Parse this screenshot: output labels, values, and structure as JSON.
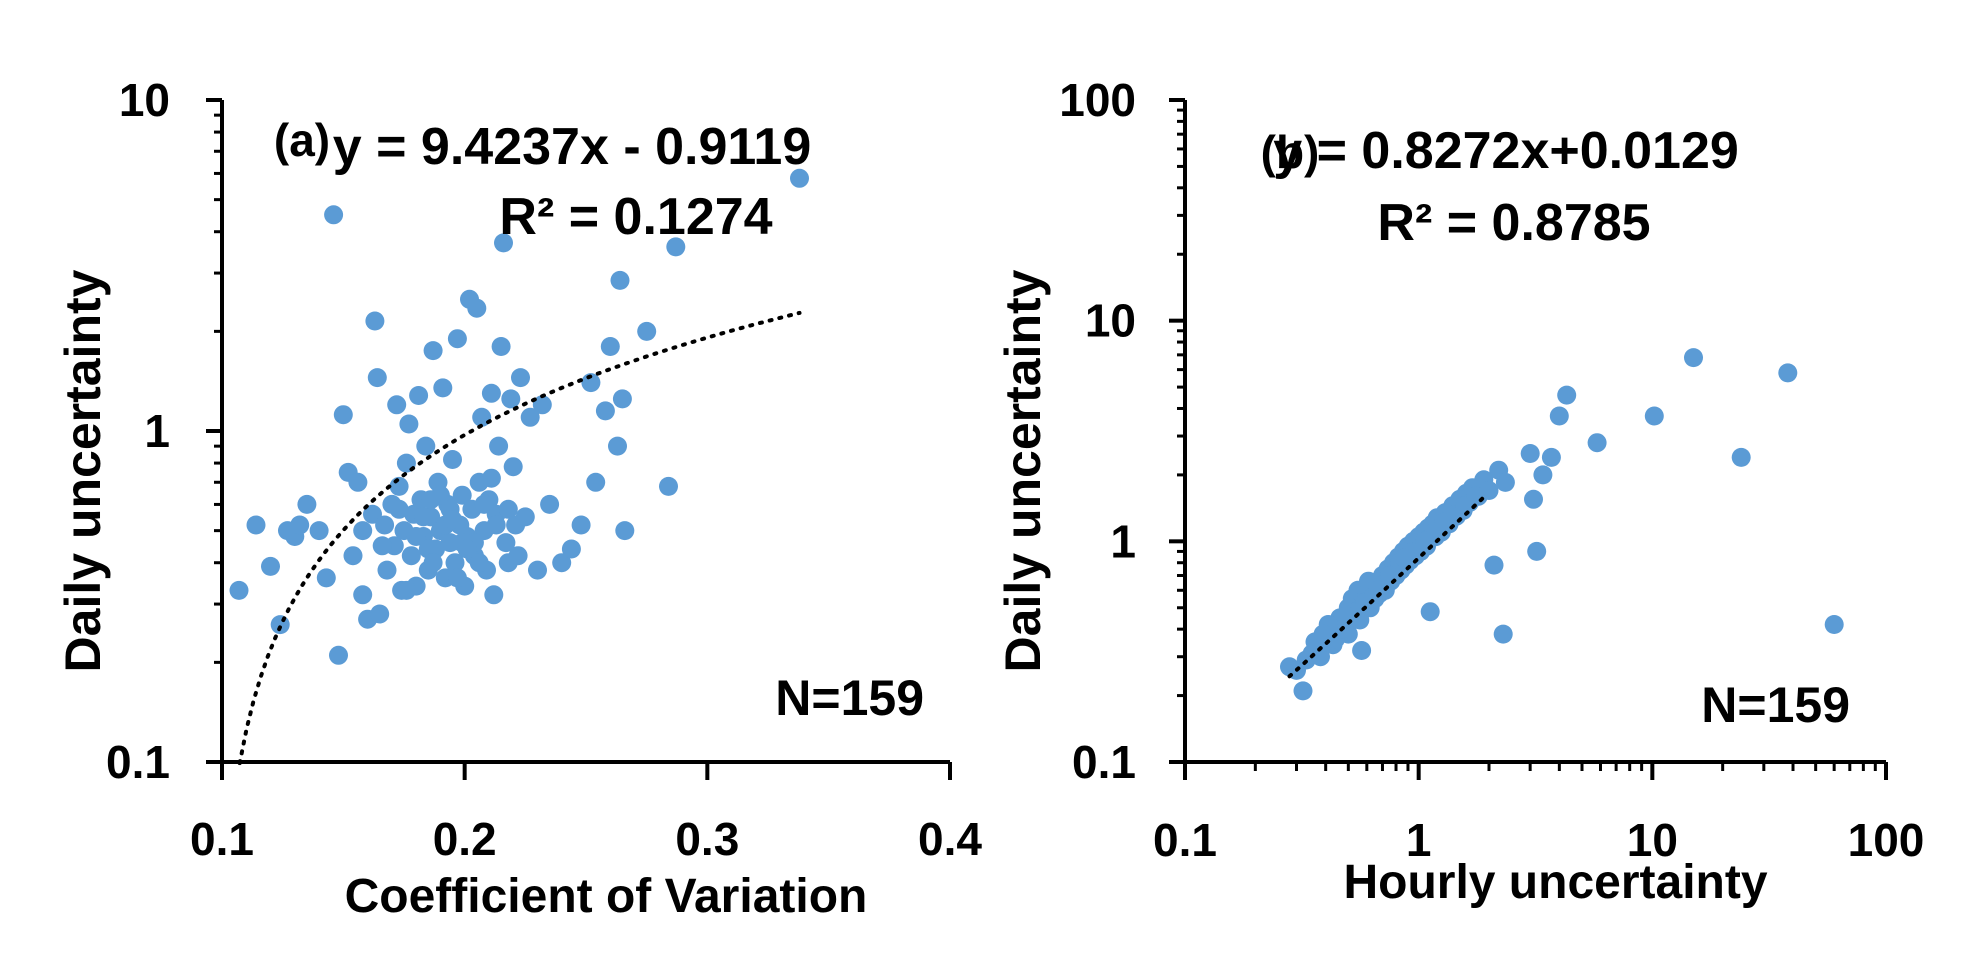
{
  "colors": {
    "point": "#5b9bd5",
    "axis": "#000000",
    "trend": "#000000"
  },
  "chart_data": [
    {
      "type": "scatter",
      "panel_label": "(a)",
      "equation": "y = 9.4237x - 0.9119",
      "r2": "R² = 0.1274",
      "n_label": "N=159",
      "xlabel": "Coefficient of Variation",
      "ylabel": "Daily uncertainty",
      "xscale": "linear",
      "yscale": "log",
      "xlim": [
        0.1,
        0.4
      ],
      "ylim": [
        0.1,
        10
      ],
      "xticks": [
        0.1,
        0.2,
        0.3,
        0.4
      ],
      "xtick_labels": [
        "0.1",
        "0.2",
        "0.3",
        "0.4"
      ],
      "yticks": [
        0.1,
        1,
        10
      ],
      "ytick_labels": [
        "0.1",
        "1",
        "10"
      ],
      "trendline": {
        "type": "linear",
        "slope": 9.4237,
        "intercept": -0.9119,
        "x_range": [
          0.1073,
          0.338
        ]
      },
      "points": [
        [
          0.107,
          0.33
        ],
        [
          0.114,
          0.52
        ],
        [
          0.12,
          0.39
        ],
        [
          0.124,
          0.26
        ],
        [
          0.127,
          0.5
        ],
        [
          0.13,
          0.48
        ],
        [
          0.132,
          0.52
        ],
        [
          0.135,
          0.6
        ],
        [
          0.14,
          0.5
        ],
        [
          0.143,
          0.36
        ],
        [
          0.146,
          4.5
        ],
        [
          0.148,
          0.21
        ],
        [
          0.15,
          1.12
        ],
        [
          0.152,
          0.75
        ],
        [
          0.154,
          0.42
        ],
        [
          0.156,
          0.7
        ],
        [
          0.158,
          0.32
        ],
        [
          0.16,
          0.27
        ],
        [
          0.162,
          0.56
        ],
        [
          0.163,
          2.15
        ],
        [
          0.164,
          1.45
        ],
        [
          0.165,
          0.28
        ],
        [
          0.167,
          0.52
        ],
        [
          0.168,
          0.38
        ],
        [
          0.17,
          0.6
        ],
        [
          0.171,
          0.45
        ],
        [
          0.172,
          1.2
        ],
        [
          0.173,
          0.68
        ],
        [
          0.174,
          0.33
        ],
        [
          0.175,
          0.5
        ],
        [
          0.176,
          0.8
        ],
        [
          0.177,
          1.05
        ],
        [
          0.178,
          0.42
        ],
        [
          0.179,
          0.56
        ],
        [
          0.18,
          0.34
        ],
        [
          0.181,
          1.28
        ],
        [
          0.182,
          0.62
        ],
        [
          0.183,
          0.48
        ],
        [
          0.184,
          0.9
        ],
        [
          0.185,
          0.38
        ],
        [
          0.186,
          0.55
        ],
        [
          0.187,
          1.75
        ],
        [
          0.188,
          0.44
        ],
        [
          0.189,
          0.7
        ],
        [
          0.19,
          0.5
        ],
        [
          0.191,
          1.35
        ],
        [
          0.192,
          0.36
        ],
        [
          0.193,
          0.6
        ],
        [
          0.194,
          0.46
        ],
        [
          0.195,
          0.82
        ],
        [
          0.196,
          0.4
        ],
        [
          0.197,
          1.9
        ],
        [
          0.198,
          0.52
        ],
        [
          0.199,
          0.64
        ],
        [
          0.2,
          0.34
        ],
        [
          0.201,
          0.48
        ],
        [
          0.202,
          2.5
        ],
        [
          0.203,
          0.58
        ],
        [
          0.204,
          0.42
        ],
        [
          0.205,
          2.35
        ],
        [
          0.206,
          0.7
        ],
        [
          0.207,
          1.1
        ],
        [
          0.208,
          0.5
        ],
        [
          0.209,
          0.38
        ],
        [
          0.21,
          0.62
        ],
        [
          0.211,
          1.3
        ],
        [
          0.212,
          0.32
        ],
        [
          0.213,
          0.56
        ],
        [
          0.214,
          0.9
        ],
        [
          0.215,
          1.8
        ],
        [
          0.216,
          3.7
        ],
        [
          0.217,
          0.46
        ],
        [
          0.218,
          0.4
        ],
        [
          0.219,
          1.25
        ],
        [
          0.22,
          0.78
        ],
        [
          0.221,
          0.52
        ],
        [
          0.222,
          0.42
        ],
        [
          0.223,
          1.45
        ],
        [
          0.225,
          0.55
        ],
        [
          0.227,
          1.1
        ],
        [
          0.23,
          0.38
        ],
        [
          0.232,
          1.2
        ],
        [
          0.235,
          0.6
        ],
        [
          0.24,
          0.4
        ],
        [
          0.244,
          0.44
        ],
        [
          0.248,
          0.52
        ],
        [
          0.252,
          1.4
        ],
        [
          0.254,
          0.7
        ],
        [
          0.258,
          1.15
        ],
        [
          0.26,
          1.8
        ],
        [
          0.263,
          0.9
        ],
        [
          0.264,
          2.85
        ],
        [
          0.265,
          1.25
        ],
        [
          0.266,
          0.5
        ],
        [
          0.275,
          2.0
        ],
        [
          0.284,
          0.68
        ],
        [
          0.287,
          3.6
        ],
        [
          0.338,
          5.8
        ],
        [
          0.176,
          0.33
        ],
        [
          0.183,
          0.55
        ],
        [
          0.19,
          0.64
        ],
        [
          0.197,
          0.36
        ],
        [
          0.204,
          0.46
        ],
        [
          0.211,
          0.72
        ],
        [
          0.218,
          0.58
        ],
        [
          0.185,
          0.44
        ],
        [
          0.192,
          0.52
        ],
        [
          0.199,
          0.46
        ],
        [
          0.206,
          0.4
        ],
        [
          0.213,
          0.52
        ],
        [
          0.18,
          0.48
        ],
        [
          0.187,
          0.4
        ],
        [
          0.194,
          0.58
        ],
        [
          0.201,
          0.44
        ],
        [
          0.208,
          0.6
        ],
        [
          0.173,
          0.58
        ],
        [
          0.158,
          0.5
        ],
        [
          0.166,
          0.45
        ],
        [
          0.195,
          0.54
        ],
        [
          0.186,
          0.62
        ]
      ]
    },
    {
      "type": "scatter",
      "panel_label": "(b)",
      "equation": "y = 0.8272x+0.0129",
      "r2": "R² = 0.8785",
      "n_label": "N=159",
      "xlabel": "Hourly uncertainty",
      "ylabel": "Daily uncertainty",
      "xscale": "log",
      "yscale": "log",
      "xlim": [
        0.1,
        100
      ],
      "ylim": [
        0.1,
        100
      ],
      "xticks": [
        0.1,
        1,
        10,
        100
      ],
      "xtick_labels": [
        "0.1",
        "1",
        "10",
        "100"
      ],
      "yticks": [
        0.1,
        1,
        10,
        100
      ],
      "ytick_labels": [
        "0.1",
        "1",
        "10",
        "100"
      ],
      "trendline": {
        "type": "linear",
        "slope": 0.8272,
        "intercept": 0.0129,
        "x_range": [
          0.28,
          1.95
        ]
      },
      "points": [
        [
          0.28,
          0.27
        ],
        [
          0.3,
          0.26
        ],
        [
          0.32,
          0.21
        ],
        [
          0.33,
          0.29
        ],
        [
          0.35,
          0.31
        ],
        [
          0.37,
          0.33
        ],
        [
          0.38,
          0.3
        ],
        [
          0.4,
          0.35
        ],
        [
          0.42,
          0.37
        ],
        [
          0.43,
          0.34
        ],
        [
          0.45,
          0.4
        ],
        [
          0.46,
          0.45
        ],
        [
          0.48,
          0.42
        ],
        [
          0.5,
          0.5
        ],
        [
          0.5,
          0.38
        ],
        [
          0.52,
          0.55
        ],
        [
          0.53,
          0.47
        ],
        [
          0.55,
          0.6
        ],
        [
          0.56,
          0.44
        ],
        [
          0.57,
          0.32
        ],
        [
          0.58,
          0.52
        ],
        [
          0.6,
          0.58
        ],
        [
          0.62,
          0.5
        ],
        [
          0.63,
          0.65
        ],
        [
          0.65,
          0.55
        ],
        [
          0.66,
          0.62
        ],
        [
          0.68,
          0.58
        ],
        [
          0.7,
          0.7
        ],
        [
          0.72,
          0.6
        ],
        [
          0.74,
          0.75
        ],
        [
          0.76,
          0.66
        ],
        [
          0.78,
          0.8
        ],
        [
          0.8,
          0.7
        ],
        [
          0.82,
          0.85
        ],
        [
          0.84,
          0.74
        ],
        [
          0.86,
          0.9
        ],
        [
          0.88,
          0.78
        ],
        [
          0.9,
          0.95
        ],
        [
          0.92,
          0.82
        ],
        [
          0.95,
          1.0
        ],
        [
          0.97,
          0.86
        ],
        [
          1.0,
          1.05
        ],
        [
          1.02,
          0.9
        ],
        [
          1.05,
          1.1
        ],
        [
          1.08,
          0.95
        ],
        [
          1.1,
          1.15
        ],
        [
          1.12,
          0.48
        ],
        [
          1.15,
          1.2
        ],
        [
          1.18,
          1.05
        ],
        [
          1.2,
          1.28
        ],
        [
          1.25,
          1.1
        ],
        [
          1.3,
          1.35
        ],
        [
          1.35,
          1.2
        ],
        [
          1.4,
          1.45
        ],
        [
          1.45,
          1.3
        ],
        [
          1.5,
          1.55
        ],
        [
          1.55,
          1.38
        ],
        [
          1.6,
          1.65
        ],
        [
          1.65,
          1.5
        ],
        [
          1.7,
          1.75
        ],
        [
          1.8,
          1.6
        ],
        [
          1.9,
          1.9
        ],
        [
          2.0,
          1.7
        ],
        [
          2.1,
          0.78
        ],
        [
          2.2,
          2.1
        ],
        [
          2.3,
          0.38
        ],
        [
          2.35,
          1.85
        ],
        [
          3.0,
          2.5
        ],
        [
          3.1,
          1.55
        ],
        [
          3.2,
          0.9
        ],
        [
          3.4,
          2.0
        ],
        [
          3.7,
          2.4
        ],
        [
          4.0,
          3.7
        ],
        [
          4.3,
          4.6
        ],
        [
          5.8,
          2.8
        ],
        [
          10.2,
          3.7
        ],
        [
          15.0,
          6.8
        ],
        [
          24.0,
          2.4
        ],
        [
          38.0,
          5.8
        ],
        [
          60.0,
          0.42
        ],
        [
          0.44,
          0.36
        ],
        [
          0.47,
          0.4
        ],
        [
          0.51,
          0.44
        ],
        [
          0.54,
          0.48
        ],
        [
          0.59,
          0.53
        ],
        [
          0.64,
          0.57
        ],
        [
          0.69,
          0.62
        ],
        [
          0.73,
          0.66
        ],
        [
          0.79,
          0.71
        ],
        [
          0.85,
          0.77
        ],
        [
          0.91,
          0.83
        ],
        [
          0.96,
          0.88
        ],
        [
          1.03,
          0.97
        ],
        [
          1.09,
          1.02
        ],
        [
          1.16,
          1.1
        ],
        [
          1.22,
          1.15
        ],
        [
          0.41,
          0.42
        ],
        [
          0.49,
          0.46
        ],
        [
          0.61,
          0.66
        ],
        [
          0.71,
          0.64
        ],
        [
          0.83,
          0.8
        ],
        [
          0.93,
          0.89
        ],
        [
          1.06,
          1.0
        ],
        [
          1.28,
          1.22
        ],
        [
          1.42,
          1.32
        ],
        [
          1.58,
          1.45
        ],
        [
          1.75,
          1.6
        ],
        [
          0.36,
          0.35
        ],
        [
          0.39,
          0.38
        ],
        [
          0.67,
          0.6
        ],
        [
          0.75,
          0.7
        ],
        [
          0.87,
          0.84
        ]
      ]
    }
  ]
}
